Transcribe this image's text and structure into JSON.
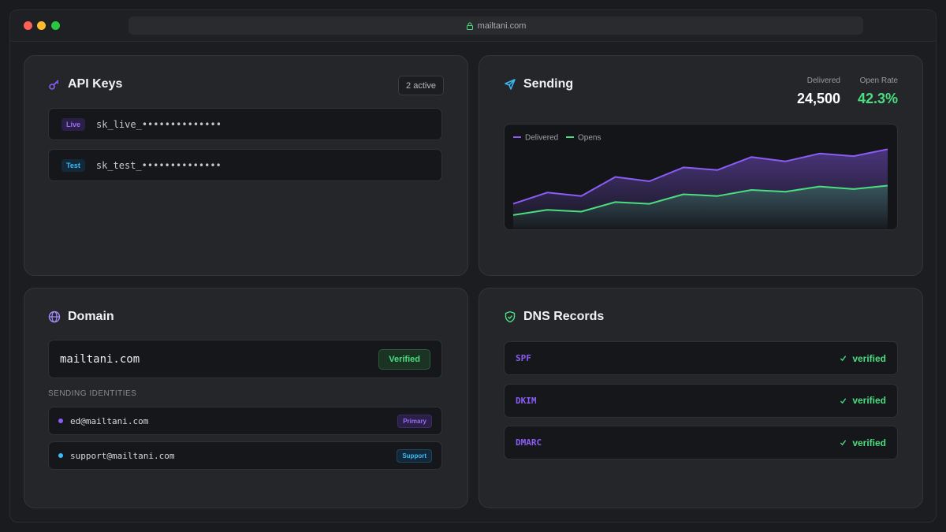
{
  "browser": {
    "url": "mailtani.com"
  },
  "api_keys": {
    "title": "API Keys",
    "badge": "2 active",
    "keys": [
      {
        "env": "Live",
        "key": "sk_live_••••••••••••••"
      },
      {
        "env": "Test",
        "key": "sk_test_••••••••••••••"
      }
    ]
  },
  "sending": {
    "title": "Sending",
    "stats": [
      {
        "label": "Delivered",
        "value": "24,500"
      },
      {
        "label": "Open Rate",
        "value": "42.3%"
      }
    ]
  },
  "chart_data": {
    "type": "area",
    "ylim": [
      0,
      100
    ],
    "series": [
      {
        "name": "Delivered",
        "color": "#8b5cf6",
        "values": [
          24,
          37,
          33,
          55,
          50,
          66,
          63,
          78,
          73,
          82,
          79,
          87
        ]
      },
      {
        "name": "Opens",
        "color": "#4ade80",
        "values": [
          11,
          17,
          15,
          26,
          24,
          35,
          33,
          40,
          38,
          44,
          41,
          45
        ]
      }
    ]
  },
  "domain": {
    "title": "Domain",
    "name": "mailtani.com",
    "status": "Verified",
    "identities_label": "SENDING IDENTITIES",
    "identities": [
      {
        "email": "ed@mailtani.com",
        "tag": "Primary"
      },
      {
        "email": "support@mailtani.com",
        "tag": "Support"
      }
    ]
  },
  "dns": {
    "title": "DNS Records",
    "records": [
      {
        "name": "SPF",
        "status": "verified"
      },
      {
        "name": "DKIM",
        "status": "verified"
      },
      {
        "name": "DMARC",
        "status": "verified"
      }
    ]
  }
}
